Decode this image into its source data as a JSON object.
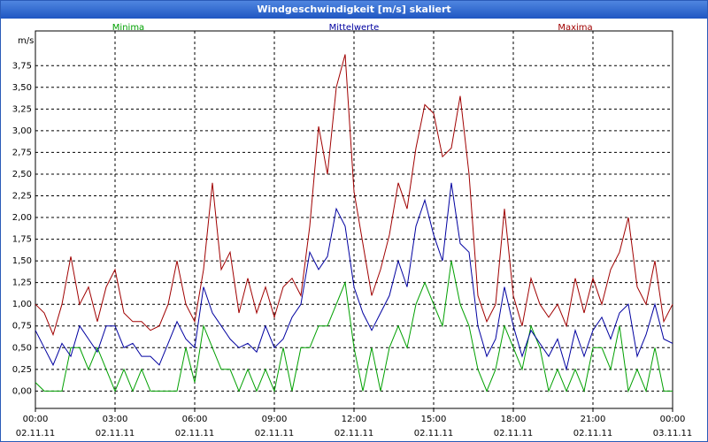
{
  "chart_data": {
    "type": "line",
    "title": "Windgeschwindigkeit [m/s] skaliert",
    "y_unit": "m/s",
    "x": [
      0,
      20,
      40,
      60,
      80,
      100,
      120,
      140,
      160,
      180,
      200,
      220,
      240,
      260,
      280,
      300,
      320,
      340,
      360,
      380,
      400,
      420,
      440,
      460,
      480,
      500,
      520,
      540,
      560,
      580,
      600,
      620,
      640,
      660,
      680,
      700,
      720,
      740,
      760,
      780,
      800,
      820,
      840,
      860,
      880,
      900,
      920,
      940,
      960,
      980,
      1000,
      1020,
      1040,
      1060,
      1080,
      1100,
      1120,
      1140,
      1160,
      1180,
      1200,
      1220,
      1240,
      1260,
      1280,
      1300,
      1320,
      1340,
      1360,
      1380,
      1400,
      1420,
      1440
    ],
    "xlim": [
      0,
      1440
    ],
    "xticks": [
      {
        "value": 0,
        "label": "00:00",
        "date": "02.11.11"
      },
      {
        "value": 180,
        "label": "03:00",
        "date": "02.11.11"
      },
      {
        "value": 360,
        "label": "06:00",
        "date": "02.11.11"
      },
      {
        "value": 540,
        "label": "09:00",
        "date": "02.11.11"
      },
      {
        "value": 720,
        "label": "12:00",
        "date": "02.11.11"
      },
      {
        "value": 900,
        "label": "15:00",
        "date": "02.11.11"
      },
      {
        "value": 1080,
        "label": "18:00",
        "date": "02.11.11"
      },
      {
        "value": 1260,
        "label": "21:00",
        "date": "02.11.11"
      },
      {
        "value": 1440,
        "label": "00:00",
        "date": "03.11.11"
      }
    ],
    "ylim": [
      -0.2,
      4.15
    ],
    "yticks": [
      {
        "value": 0,
        "label": "0,00"
      },
      {
        "value": 0.25,
        "label": "0,25"
      },
      {
        "value": 0.5,
        "label": "0,50"
      },
      {
        "value": 0.75,
        "label": "0,75"
      },
      {
        "value": 1,
        "label": "1,00"
      },
      {
        "value": 1.25,
        "label": "1,25"
      },
      {
        "value": 1.5,
        "label": "1,50"
      },
      {
        "value": 1.75,
        "label": "1,75"
      },
      {
        "value": 2,
        "label": "2,00"
      },
      {
        "value": 2.25,
        "label": "2,25"
      },
      {
        "value": 2.5,
        "label": "2,50"
      },
      {
        "value": 2.75,
        "label": "2,75"
      },
      {
        "value": 3,
        "label": "3,00"
      },
      {
        "value": 3.25,
        "label": "3,25"
      },
      {
        "value": 3.5,
        "label": "3,50"
      },
      {
        "value": 3.75,
        "label": "3,75"
      }
    ],
    "grid": true,
    "series": [
      {
        "name": "Minima",
        "color": "#00a000",
        "values": [
          0.1,
          0,
          0,
          0,
          0.5,
          0.5,
          0.25,
          0.5,
          0.25,
          0,
          0.25,
          0,
          0.25,
          0,
          0,
          0,
          0,
          0.5,
          0.1,
          0.75,
          0.5,
          0.25,
          0.25,
          0,
          0.25,
          0,
          0.25,
          0,
          0.5,
          0,
          0.5,
          0.5,
          0.75,
          0.75,
          1.0,
          1.25,
          0.5,
          0,
          0.5,
          0,
          0.5,
          0.75,
          0.5,
          1.0,
          1.25,
          1.0,
          0.75,
          1.5,
          1.0,
          0.75,
          0.25,
          0,
          0.25,
          0.75,
          0.5,
          0.25,
          0.75,
          0.5,
          0,
          0.25,
          0,
          0.25,
          0,
          0.5,
          0.5,
          0.25,
          0.75,
          0,
          0.25,
          0,
          0.5,
          0,
          0
        ]
      },
      {
        "name": "Mittelwerte",
        "color": "#0000a0",
        "values": [
          0.7,
          0.5,
          0.3,
          0.55,
          0.4,
          0.75,
          0.6,
          0.45,
          0.75,
          0.75,
          0.5,
          0.55,
          0.4,
          0.4,
          0.3,
          0.55,
          0.8,
          0.6,
          0.5,
          1.2,
          0.9,
          0.75,
          0.6,
          0.5,
          0.55,
          0.45,
          0.75,
          0.5,
          0.6,
          0.85,
          1.0,
          1.6,
          1.4,
          1.55,
          2.1,
          1.9,
          1.2,
          0.9,
          0.7,
          0.9,
          1.1,
          1.5,
          1.2,
          1.9,
          2.2,
          1.8,
          1.5,
          2.4,
          1.7,
          1.6,
          0.75,
          0.4,
          0.6,
          1.2,
          0.75,
          0.4,
          0.7,
          0.55,
          0.4,
          0.6,
          0.25,
          0.7,
          0.4,
          0.7,
          0.85,
          0.6,
          0.9,
          1.0,
          0.4,
          0.65,
          1.0,
          0.6,
          0.55
        ]
      },
      {
        "name": "Maxima",
        "color": "#a00000",
        "values": [
          1.0,
          0.9,
          0.65,
          1.0,
          1.55,
          1.0,
          1.2,
          0.8,
          1.2,
          1.4,
          0.9,
          0.8,
          0.8,
          0.7,
          0.75,
          1.0,
          1.5,
          1.0,
          0.8,
          1.4,
          2.4,
          1.4,
          1.6,
          0.9,
          1.3,
          0.9,
          1.2,
          0.85,
          1.2,
          1.3,
          1.1,
          1.9,
          3.05,
          2.5,
          3.5,
          3.88,
          2.3,
          1.7,
          1.1,
          1.4,
          1.8,
          2.4,
          2.1,
          2.8,
          3.3,
          3.2,
          2.7,
          2.8,
          3.4,
          2.5,
          1.1,
          0.8,
          1.0,
          2.1,
          1.1,
          0.75,
          1.3,
          1.0,
          0.85,
          1.0,
          0.75,
          1.3,
          0.9,
          1.3,
          1.0,
          1.4,
          1.6,
          2.0,
          1.2,
          1.0,
          1.5,
          0.8,
          1.0
        ]
      }
    ]
  }
}
